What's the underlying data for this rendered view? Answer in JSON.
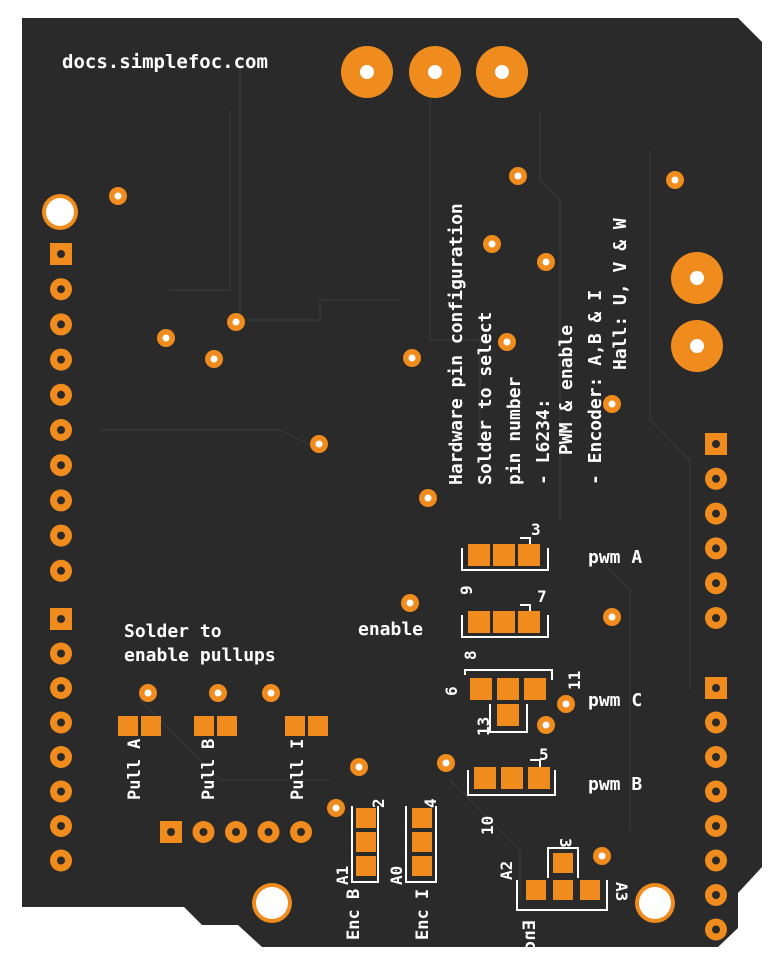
{
  "board": {
    "colors": {
      "board": "#2a2a2a",
      "copper_trace": "#333333",
      "pad": "#f08c1e",
      "silkscreen": "#ffffff",
      "hole": "#ffffff"
    },
    "url": "docs.simplefoc.com",
    "config_title": "Hardware pin configuration",
    "config_line2": "Solder to select",
    "config_line3": "pin number",
    "config_l6234": "- L6234:",
    "config_pwm_enable": "PWM & enable",
    "config_encoder": "- Encoder:  A,B & I",
    "config_hall": "Hall: U, V & W",
    "pullups_line1": "Solder to",
    "pullups_line2": "enable pullups",
    "label_enable": "enable",
    "label_pwm_a": "pwm A",
    "label_pwm_b": "pwm B",
    "label_pwm_c": "pwm C",
    "pull_a": "Pull A",
    "pull_b": "Pull B",
    "pull_i": "Pull I",
    "enc_b": "Enc B",
    "enc_i": "Enc I",
    "enc_a": "Enc A",
    "pin_3": "3",
    "pin_9": "9",
    "pin_7": "7",
    "pin_8": "8",
    "pin_6": "6",
    "pin_11": "11",
    "pin_13": "13",
    "pin_5": "5",
    "pin_10": "10",
    "pin_2": "2",
    "pin_4": "4",
    "pin_A1": "A1",
    "pin_A0": "A0",
    "pin_A2": "A2",
    "pin_A3": "A3",
    "pin_3b": "3"
  }
}
